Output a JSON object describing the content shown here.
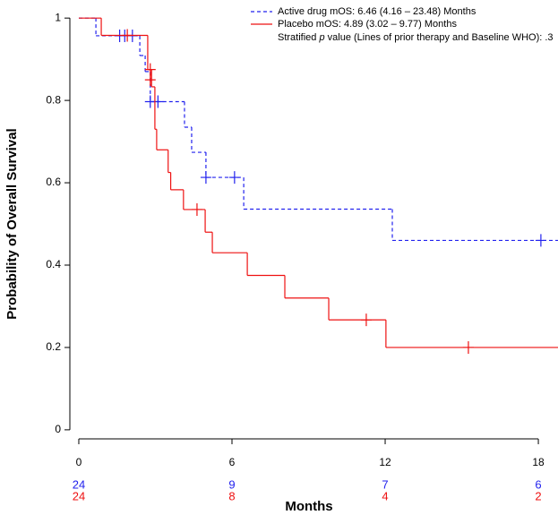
{
  "chart_data": {
    "type": "km",
    "xlabel": "Months",
    "ylabel": "Probability of Overall Survival",
    "xlim": [
      -0.35,
      18.77
    ],
    "ylim": [
      -0.022,
      1.033
    ],
    "xticks": [
      0,
      6,
      12,
      18
    ],
    "yticks": [
      0,
      0.2,
      0.4,
      0.6,
      0.8,
      1
    ],
    "annotation": [
      "Stratified ",
      "p",
      " value (Lines of prior therapy and Baseline WHO): .3"
    ],
    "series": [
      {
        "name": "Active drug mOS: 6.46 (4.16 – 23.48) Months",
        "color": "#2222ee",
        "dash": true,
        "x": [
          0,
          0.67,
          2.39,
          2.6,
          2.8,
          4.14,
          4.42,
          4.98,
          6.46,
          12.28
        ],
        "values": [
          1,
          0.957,
          0.909,
          0.87,
          0.797,
          0.735,
          0.674,
          0.613,
          0.536,
          0.46
        ],
        "censored": {
          "x": [
            1.6,
            1.8,
            2.1,
            2.8,
            3.1,
            4.98,
            6.1,
            18.1
          ],
          "values": [
            0.957,
            0.957,
            0.957,
            0.797,
            0.797,
            0.613,
            0.613,
            0.46
          ]
        },
        "at_risk": [
          24,
          9,
          7,
          6
        ]
      },
      {
        "name": "Placebo mOS: 4.89 (3.02 – 9.77) Months",
        "color": "#ee1111",
        "dash": false,
        "x": [
          0,
          0.88,
          2.7,
          2.85,
          2.98,
          3.05,
          3.5,
          3.6,
          4.1,
          4.95,
          5.23,
          6.6,
          8.07,
          9.79,
          12.03
        ],
        "values": [
          1,
          0.958,
          0.875,
          0.833,
          0.73,
          0.68,
          0.625,
          0.583,
          0.535,
          0.48,
          0.43,
          0.375,
          0.32,
          0.267,
          0.2
        ],
        "censored": {
          "x": [
            1.9,
            2.8,
            2.8,
            4.63,
            11.26,
            15.26
          ],
          "values": [
            0.958,
            0.875,
            0.85,
            0.535,
            0.267,
            0.2
          ]
        },
        "at_risk": [
          24,
          8,
          4,
          2
        ]
      }
    ]
  }
}
